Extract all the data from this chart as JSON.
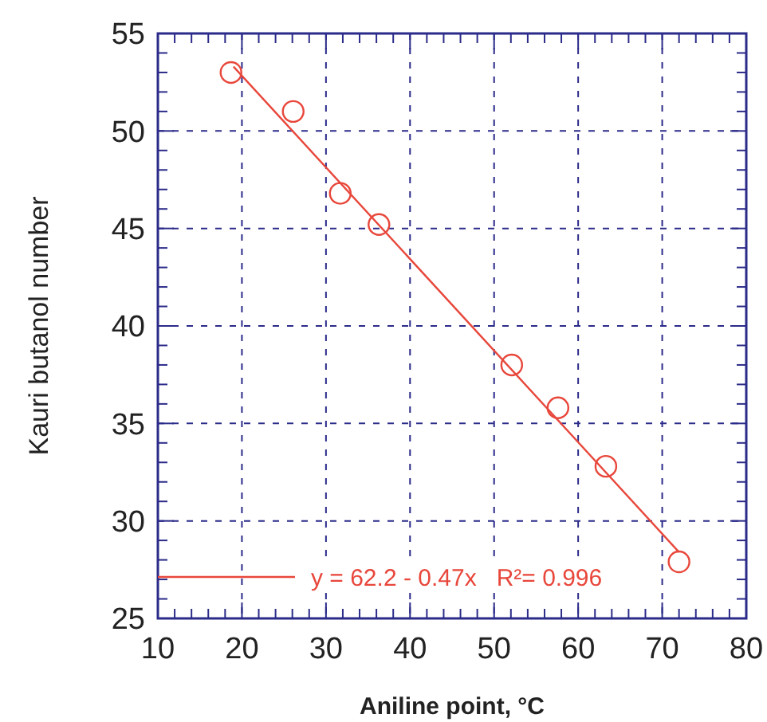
{
  "chart_data": {
    "type": "scatter",
    "xlabel": "Aniline point, °C",
    "ylabel": "Kauri butanol number",
    "xlim": [
      10,
      80
    ],
    "ylim": [
      25,
      55
    ],
    "xticks": [
      10,
      {
        "value": 12,
        "label": null
      },
      {
        "value": 14,
        "label": null
      },
      {
        "value": 16,
        "label": null
      },
      {
        "value": 18,
        "label": null
      },
      20,
      {
        "value": 22,
        "label": null
      },
      {
        "value": 24,
        "label": null
      },
      {
        "value": 26,
        "label": null
      },
      {
        "value": 28,
        "label": null
      },
      30,
      {
        "value": 32,
        "label": null
      },
      {
        "value": 34,
        "label": null
      },
      {
        "value": 36,
        "label": null
      },
      {
        "value": 38,
        "label": null
      },
      40,
      {
        "value": 42,
        "label": null
      },
      {
        "value": 44,
        "label": null
      },
      {
        "value": 46,
        "label": null
      },
      {
        "value": 48,
        "label": null
      },
      50,
      {
        "value": 52,
        "label": null
      },
      {
        "value": 54,
        "label": null
      },
      {
        "value": 56,
        "label": null
      },
      {
        "value": 58,
        "label": null
      },
      60,
      {
        "value": 62,
        "label": null
      },
      {
        "value": 64,
        "label": null
      },
      {
        "value": 66,
        "label": null
      },
      {
        "value": 68,
        "label": null
      },
      70,
      {
        "value": 72,
        "label": null
      },
      {
        "value": 74,
        "label": null
      },
      {
        "value": 76,
        "label": null
      },
      {
        "value": 78,
        "label": null
      },
      80
    ],
    "yticks": [
      25,
      {
        "value": 26,
        "label": null
      },
      {
        "value": 27,
        "label": null
      },
      {
        "value": 28,
        "label": null
      },
      {
        "value": 29,
        "label": null
      },
      30,
      {
        "value": 31,
        "label": null
      },
      {
        "value": 32,
        "label": null
      },
      {
        "value": 33,
        "label": null
      },
      {
        "value": 34,
        "label": null
      },
      35,
      {
        "value": 36,
        "label": null
      },
      {
        "value": 37,
        "label": null
      },
      {
        "value": 38,
        "label": null
      },
      {
        "value": 39,
        "label": null
      },
      40,
      {
        "value": 41,
        "label": null
      },
      {
        "value": 42,
        "label": null
      },
      {
        "value": 43,
        "label": null
      },
      {
        "value": 44,
        "label": null
      },
      45,
      {
        "value": 46,
        "label": null
      },
      {
        "value": 47,
        "label": null
      },
      {
        "value": 48,
        "label": null
      },
      {
        "value": 49,
        "label": null
      },
      50,
      {
        "value": 51,
        "label": null
      },
      {
        "value": 52,
        "label": null
      },
      {
        "value": 53,
        "label": null
      },
      {
        "value": 54,
        "label": null
      },
      55
    ],
    "grid": true,
    "legend": "bottom left",
    "series": [
      {
        "color": "#e8473b",
        "marker": "circle",
        "x": [
          18.7,
          26.1,
          31.7,
          36.3,
          52.1,
          57.6,
          63.3,
          72.0
        ],
        "values": [
          53.0,
          51.0,
          46.8,
          45.2,
          38.0,
          35.8,
          32.8,
          27.9
        ]
      },
      {
        "type": "line",
        "name": "y = 62.2 - 0.47x   R²= 0.996",
        "color": "#e8473b",
        "marker": "none",
        "line_style": "solid",
        "x": [
          19,
          72
        ],
        "values": [
          53.3,
          28.4
        ]
      }
    ]
  }
}
